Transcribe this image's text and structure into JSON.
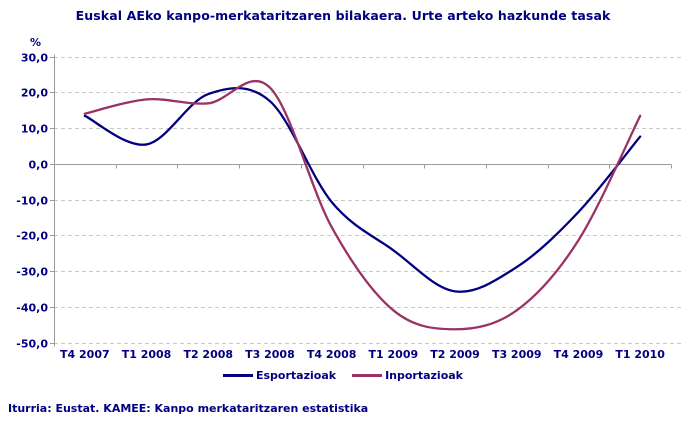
{
  "chart_data": {
    "type": "line",
    "title": "Euskal AEko kanpo-merkataritzaren bilakaera. Urte arteko hazkunde tasak",
    "unit_label": "%",
    "categories": [
      "T4 2007",
      "T1 2008",
      "T2 2008",
      "T3 2008",
      "T4 2008",
      "T1 2009",
      "T2 2009",
      "T3 2009",
      "T4 2009",
      "T1 2010"
    ],
    "series": [
      {
        "name": "Esportazioak",
        "color": "#000080",
        "values": [
          13.4,
          5.4,
          19.5,
          17.5,
          -10.7,
          -24.2,
          -35.7,
          -28.9,
          -13.5,
          7.6
        ]
      },
      {
        "name": "Inportazioak",
        "color": "#993366",
        "values": [
          14.0,
          18.0,
          16.9,
          21.3,
          -17.7,
          -41.0,
          -46.3,
          -41.0,
          -21.4,
          13.4
        ]
      }
    ],
    "y_axis": {
      "min": -50,
      "max": 30,
      "step": 10,
      "tick_values": [
        30,
        20,
        10,
        0,
        -10,
        -20,
        -30,
        -40,
        -50
      ],
      "tick_labels": [
        "30,0",
        "20,0",
        "10,0",
        "0,0",
        "-10,0",
        "-20,0",
        "-30,0",
        "-40,0",
        "-50,0"
      ]
    },
    "grid": "horizontal dashed",
    "legend_position": "bottom",
    "line_smoothing": true,
    "colors": {
      "grid": "#c9c9c9",
      "axis": "#9b9b9b",
      "text": "#000080"
    }
  },
  "footer": {
    "source": "Iturria: Eustat. KAMEE: Kanpo merkataritzaren estatistika"
  }
}
